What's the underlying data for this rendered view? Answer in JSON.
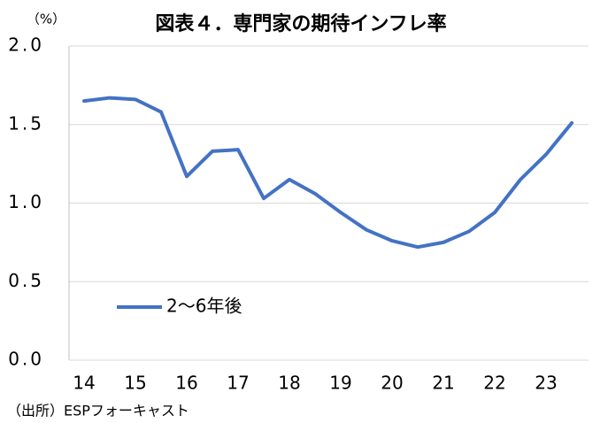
{
  "chart_data": {
    "type": "line",
    "title": "図表４．専門家の期待インフレ率",
    "y_unit": "（%）",
    "source": "（出所）ESPフォーキャスト",
    "categories": [
      "14",
      null,
      "15",
      null,
      "16",
      null,
      "17",
      null,
      "18",
      null,
      "19",
      null,
      "20",
      null,
      "21",
      null,
      "22",
      null,
      "23",
      null
    ],
    "series": [
      {
        "name": "2〜6年後",
        "color": "#4472c4",
        "values": [
          1.65,
          1.67,
          1.66,
          1.58,
          1.17,
          1.33,
          1.34,
          1.03,
          1.15,
          1.06,
          0.94,
          0.83,
          0.76,
          0.72,
          0.75,
          0.82,
          0.94,
          1.15,
          1.31,
          1.51
        ]
      }
    ],
    "ylim": [
      0,
      2
    ],
    "yticks": [
      {
        "value": 0,
        "label": "0.0"
      },
      0.5,
      {
        "value": 1,
        "label": "1.0"
      },
      1.5,
      {
        "value": 2,
        "label": "2.0"
      }
    ],
    "grid": true,
    "legend": "bottom-left"
  }
}
